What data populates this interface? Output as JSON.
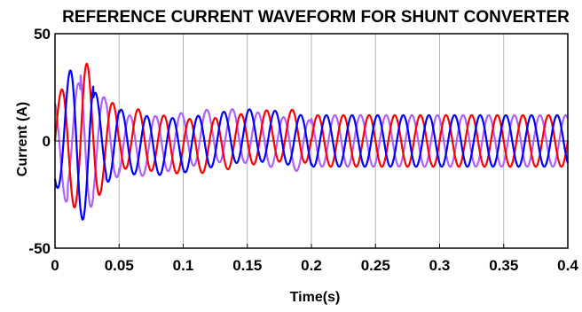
{
  "chart_data": {
    "type": "line",
    "title": "REFERENCE CURRENT WAVEFORM FOR SHUNT CONVERTER",
    "xlabel": "Time(s)",
    "ylabel": "Current (A)",
    "xlim": [
      0,
      0.4
    ],
    "ylim": [
      -50,
      50
    ],
    "xticks": [
      0,
      0.05,
      0.1,
      0.15,
      0.2,
      0.25,
      0.3,
      0.35,
      0.4
    ],
    "xtick_labels": [
      "0",
      "0.05",
      "0.1",
      "0.15",
      "0.2",
      "0.25",
      "0.3",
      "0.35",
      "0.4"
    ],
    "yticks": [
      -50,
      0,
      50
    ],
    "ytick_labels": [
      "-50",
      "0",
      "50"
    ],
    "grid": true,
    "legend": "none",
    "waveform": {
      "frequency_hz": 50,
      "steady_state_amplitude": 12,
      "startup_amplitude": 16,
      "startup_end_time": 0.05,
      "transient_peak_values": [
        35,
        30,
        40,
        -40,
        -38,
        -20
      ]
    },
    "series": [
      {
        "color": "#ff0000",
        "phase_deg": 0
      },
      {
        "color": "#0000ff",
        "phase_deg": -120
      },
      {
        "color": "#b060ff",
        "phase_deg": 120
      }
    ],
    "colors": {
      "background": "#ffffff",
      "axes": "#000000",
      "grid": "#b4b4b4",
      "zero_line": "#000000"
    }
  }
}
